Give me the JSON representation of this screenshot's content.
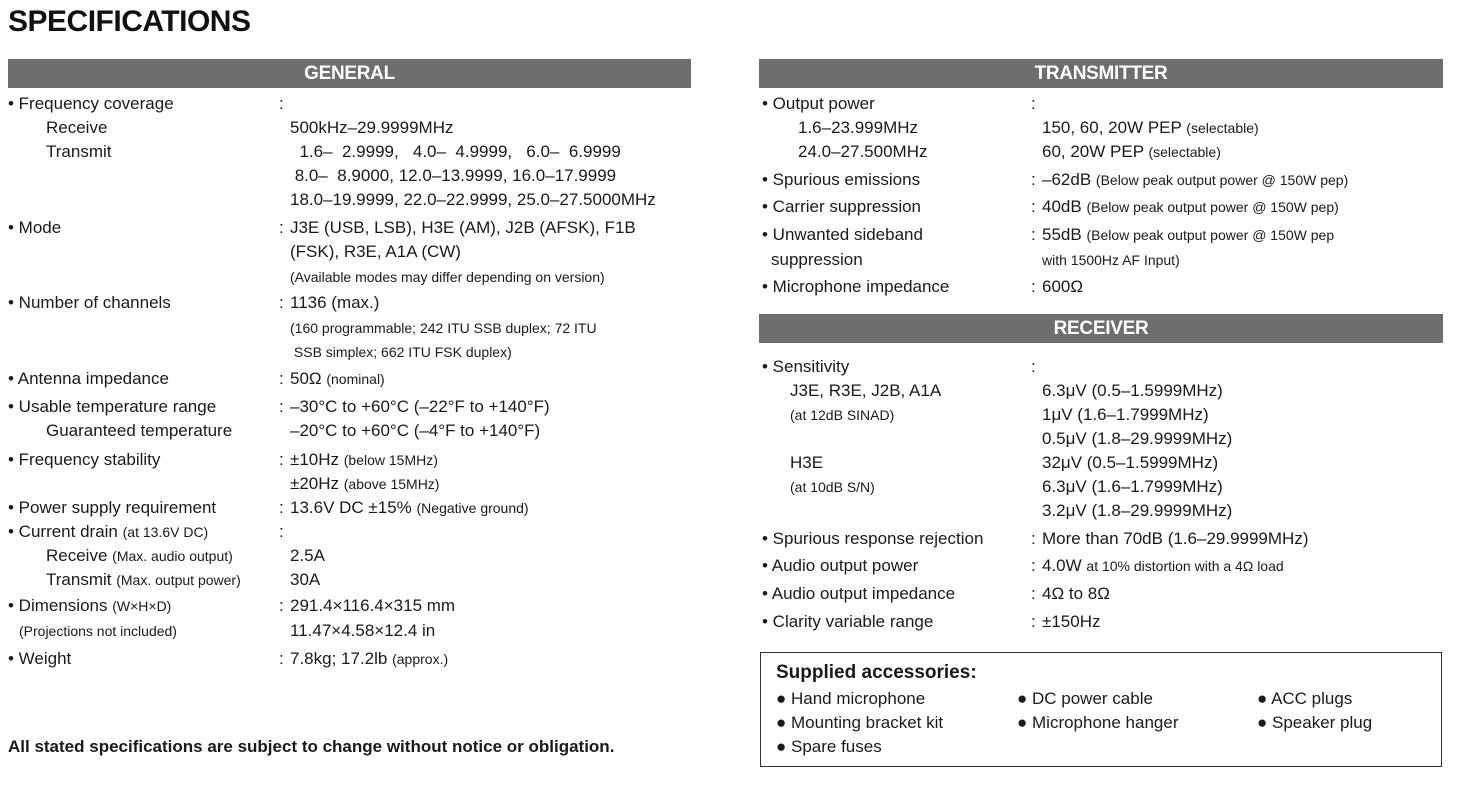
{
  "title": "SPECIFICATIONS",
  "general": {
    "header": "GENERAL",
    "rows": [
      {
        "l": "• Frequency coverage",
        "c": ":"
      },
      {
        "l": "Receive",
        "v": "500kHz–29.9999MHz"
      },
      {
        "l": "Transmit",
        "v": "  1.6–  2.9999,   4.0–  4.9999,   6.0–  6.9999"
      },
      {
        "v": " 8.0–  8.9000, 12.0–13.9999, 16.0–17.9999"
      },
      {
        "v": "18.0–19.9999, 22.0–22.9999, 25.0–27.5000MHz"
      },
      {
        "l": "• Mode",
        "c": ":",
        "v": "J3E (USB, LSB), H3E (AM), J2B (AFSK), F1B"
      },
      {
        "v": "(FSK), R3E, A1A (CW)"
      },
      {
        "vn": "(Available modes may differ depending on version)"
      },
      {
        "l": "• Number of channels",
        "c": ":",
        "v": "1136 (max.)"
      },
      {
        "vn": "(160 programmable; 242 ITU SSB duplex; 72 ITU"
      },
      {
        "vn": " SSB simplex; 662 ITU FSK duplex)"
      },
      {
        "l": "• Antenna impedance",
        "c": ":",
        "v": "50Ω",
        "vn": "(nominal)"
      },
      {
        "l": "• Usable temperature range",
        "c": ":",
        "v": "–30°C to +60°C (–22°F to +140°F)"
      },
      {
        "l": "Guaranteed temperature",
        "v": "–20°C to +60°C (–4°F to +140°F)"
      },
      {
        "l": "• Frequency stability",
        "c": ":",
        "v": "±10Hz",
        "vn": "(below 15MHz)"
      },
      {
        "v": "±20Hz",
        "vn": "(above 15MHz)"
      },
      {
        "l": "• Power supply requirement",
        "c": ":",
        "v": "13.6V DC ±15%",
        "vn": "(Negative ground)"
      },
      {
        "l": "• Current drain",
        "ln": "(at 13.6V DC)",
        "c": ":"
      },
      {
        "l": "Receive",
        "ln": "(Max. audio output)",
        "v": "2.5A"
      },
      {
        "l": "Transmit",
        "ln": "(Max. output power)",
        "v": "30A"
      },
      {
        "l": "• Dimensions",
        "ln": "(W×H×D)",
        "c": ":",
        "v": "291.4×116.4×315 mm"
      },
      {
        "ln": "(Projections not included)",
        "v": "11.47×4.58×12.4 in"
      },
      {
        "l": "• Weight",
        "c": ":",
        "v": "7.8kg; 17.2lb",
        "vn": "(approx.)"
      }
    ]
  },
  "transmitter": {
    "header": "TRANSMITTER",
    "rows": [
      {
        "l": "• Output power",
        "c": ":"
      },
      {
        "l": "1.6–23.999MHz",
        "v": "150, 60, 20W PEP",
        "vn": "(selectable)"
      },
      {
        "l": "24.0–27.500MHz",
        "v": "60, 20W PEP",
        "vn": "(selectable)"
      },
      {
        "l": "• Spurious emissions",
        "c": ":",
        "v": "–62dB",
        "vn": "(Below peak output power @ 150W pep)"
      },
      {
        "l": "• Carrier suppression",
        "c": ":",
        "v": "40dB",
        "vn": "(Below peak output power @ 150W pep)"
      },
      {
        "l": "• Unwanted sideband",
        "c": ":",
        "v": "55dB",
        "vn": "(Below peak output power @ 150W pep"
      },
      {
        "l": "suppression",
        "vn": "with 1500Hz AF Input)"
      },
      {
        "l": "• Microphone impedance",
        "c": ":",
        "v": "600Ω"
      }
    ]
  },
  "receiver": {
    "header": "RECEIVER",
    "rows": [
      {
        "l": "• Sensitivity",
        "c": ":"
      },
      {
        "l": "J3E, R3E, J2B, A1A",
        "v": "6.3μV (0.5–1.5999MHz)"
      },
      {
        "ln": "(at 12dB SINAD)",
        "v": "1μV (1.6–1.7999MHz)"
      },
      {
        "v": "0.5μV (1.8–29.9999MHz)"
      },
      {
        "l": "H3E",
        "v": "32μV (0.5–1.5999MHz)"
      },
      {
        "ln": "(at 10dB S/N)",
        "v": "6.3μV (1.6–1.7999MHz)"
      },
      {
        "v": "3.2μV (1.8–29.9999MHz)"
      },
      {
        "l": "• Spurious response rejection",
        "c": ":",
        "v": "More than 70dB (1.6–29.9999MHz)"
      },
      {
        "l": "• Audio output power",
        "c": ":",
        "v": "4.0W",
        "vn": "at 10% distortion with a 4Ω load"
      },
      {
        "l": "• Audio output impedance",
        "c": ":",
        "v": "4Ω to 8Ω"
      },
      {
        "l": "• Clarity variable range",
        "c": ":",
        "v": "±150Hz"
      }
    ]
  },
  "accessories": {
    "title": "Supplied accessories:",
    "items": [
      "Hand microphone",
      "DC power cable",
      "ACC plugs",
      "Mounting bracket kit",
      "Microphone hanger",
      "Speaker plug",
      "Spare fuses"
    ]
  },
  "footer": "All stated specifications are subject to change without notice or obligation."
}
